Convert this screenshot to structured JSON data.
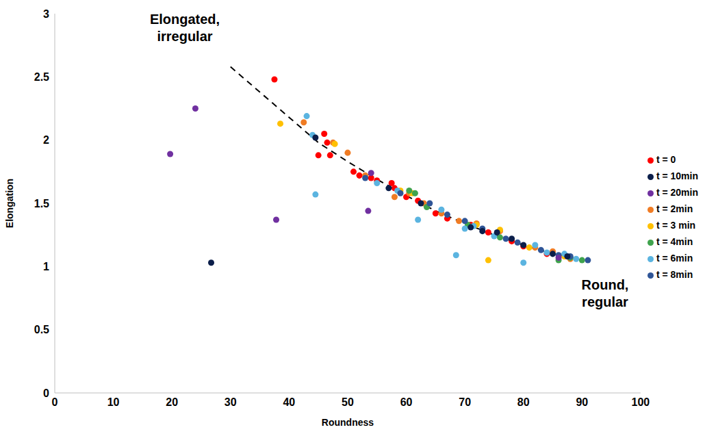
{
  "chart_data": {
    "type": "scatter",
    "x_label": "Roundness",
    "y_label": "Elongation",
    "xlim": [
      0,
      100
    ],
    "xticks": [
      0,
      10,
      20,
      30,
      40,
      50,
      60,
      70,
      80,
      90,
      100
    ],
    "ylim": [
      0,
      3
    ],
    "yticks": [
      0,
      0.5,
      1,
      1.5,
      2,
      2.5,
      3
    ],
    "grid": false,
    "legend": "right",
    "annotations": [
      {
        "lines": [
          "Elongated,",
          "irregular"
        ]
      },
      {
        "lines": [
          "Round,",
          "regular"
        ]
      }
    ],
    "trend_line": {
      "line_style": "dashed",
      "color": "#000000",
      "x": [
        30,
        35,
        40,
        45,
        50,
        55,
        60,
        65,
        70,
        75,
        80,
        85,
        90
      ],
      "values": [
        2.58,
        2.38,
        2.18,
        1.98,
        1.83,
        1.69,
        1.56,
        1.44,
        1.34,
        1.25,
        1.17,
        1.1,
        1.05
      ]
    },
    "series": [
      {
        "name": "t = 0",
        "color": "#ff0000",
        "x": [
          37.5,
          46,
          45,
          47,
          46.5,
          51,
          52,
          54,
          55,
          57.5,
          58,
          60,
          62,
          65,
          67,
          71,
          74,
          78,
          80,
          84
        ],
        "values": [
          2.48,
          2.05,
          1.88,
          1.88,
          1.98,
          1.75,
          1.72,
          1.7,
          1.68,
          1.66,
          1.62,
          1.55,
          1.52,
          1.42,
          1.38,
          1.33,
          1.27,
          1.2,
          1.16,
          1.1
        ]
      },
      {
        "name": "t = 2min",
        "color": "#f07c24",
        "x": [
          42.5,
          47.5,
          50,
          53,
          58,
          60.5,
          63,
          66,
          69,
          72,
          76,
          82,
          85,
          88
        ],
        "values": [
          2.14,
          1.98,
          1.9,
          1.72,
          1.55,
          1.58,
          1.5,
          1.42,
          1.36,
          1.34,
          1.28,
          1.15,
          1.12,
          1.06
        ]
      },
      {
        "name": "t = 3 min",
        "color": "#ffc000",
        "x": [
          38.5,
          47.8,
          59,
          61,
          72,
          74,
          76,
          81,
          87
        ],
        "values": [
          2.13,
          1.97,
          1.6,
          1.58,
          1.33,
          1.05,
          1.29,
          1.15,
          1.08
        ]
      },
      {
        "name": "t = 4min",
        "color": "#3fa34d",
        "x": [
          60.5,
          61.5,
          63.5,
          70.5,
          76,
          86,
          88,
          90
        ],
        "values": [
          1.6,
          1.58,
          1.47,
          1.33,
          1.23,
          1.05,
          1.07,
          1.05
        ]
      },
      {
        "name": "t = 6min",
        "color": "#5bb4e0",
        "x": [
          43,
          44,
          44.5,
          55,
          58.5,
          62,
          66,
          68.5,
          70,
          71.5,
          75,
          80,
          82,
          84,
          87,
          89
        ],
        "values": [
          2.19,
          2.04,
          1.57,
          1.66,
          1.6,
          1.37,
          1.45,
          1.09,
          1.3,
          1.32,
          1.24,
          1.03,
          1.17,
          1.11,
          1.1,
          1.06
        ]
      },
      {
        "name": "t = 8min",
        "color": "#2f5597",
        "x": [
          53,
          59,
          64,
          67,
          70,
          73,
          77,
          79,
          83,
          86,
          88,
          91
        ],
        "values": [
          1.7,
          1.58,
          1.5,
          1.41,
          1.36,
          1.3,
          1.22,
          1.19,
          1.13,
          1.09,
          1.08,
          1.05
        ]
      },
      {
        "name": "t = 10min",
        "color": "#0b1e4a",
        "x": [
          26.7,
          44.5,
          57,
          62.5,
          71,
          73,
          75.5,
          78,
          80,
          85,
          87.5
        ],
        "values": [
          1.03,
          2.02,
          1.62,
          1.5,
          1.31,
          1.28,
          1.27,
          1.22,
          1.17,
          1.1,
          1.08
        ]
      },
      {
        "name": "t = 20min",
        "color": "#7030a0",
        "x": [
          24,
          19.7,
          37.8,
          53.5,
          54,
          86
        ],
        "values": [
          2.25,
          1.89,
          1.37,
          1.44,
          1.74,
          1.07
        ]
      }
    ]
  }
}
